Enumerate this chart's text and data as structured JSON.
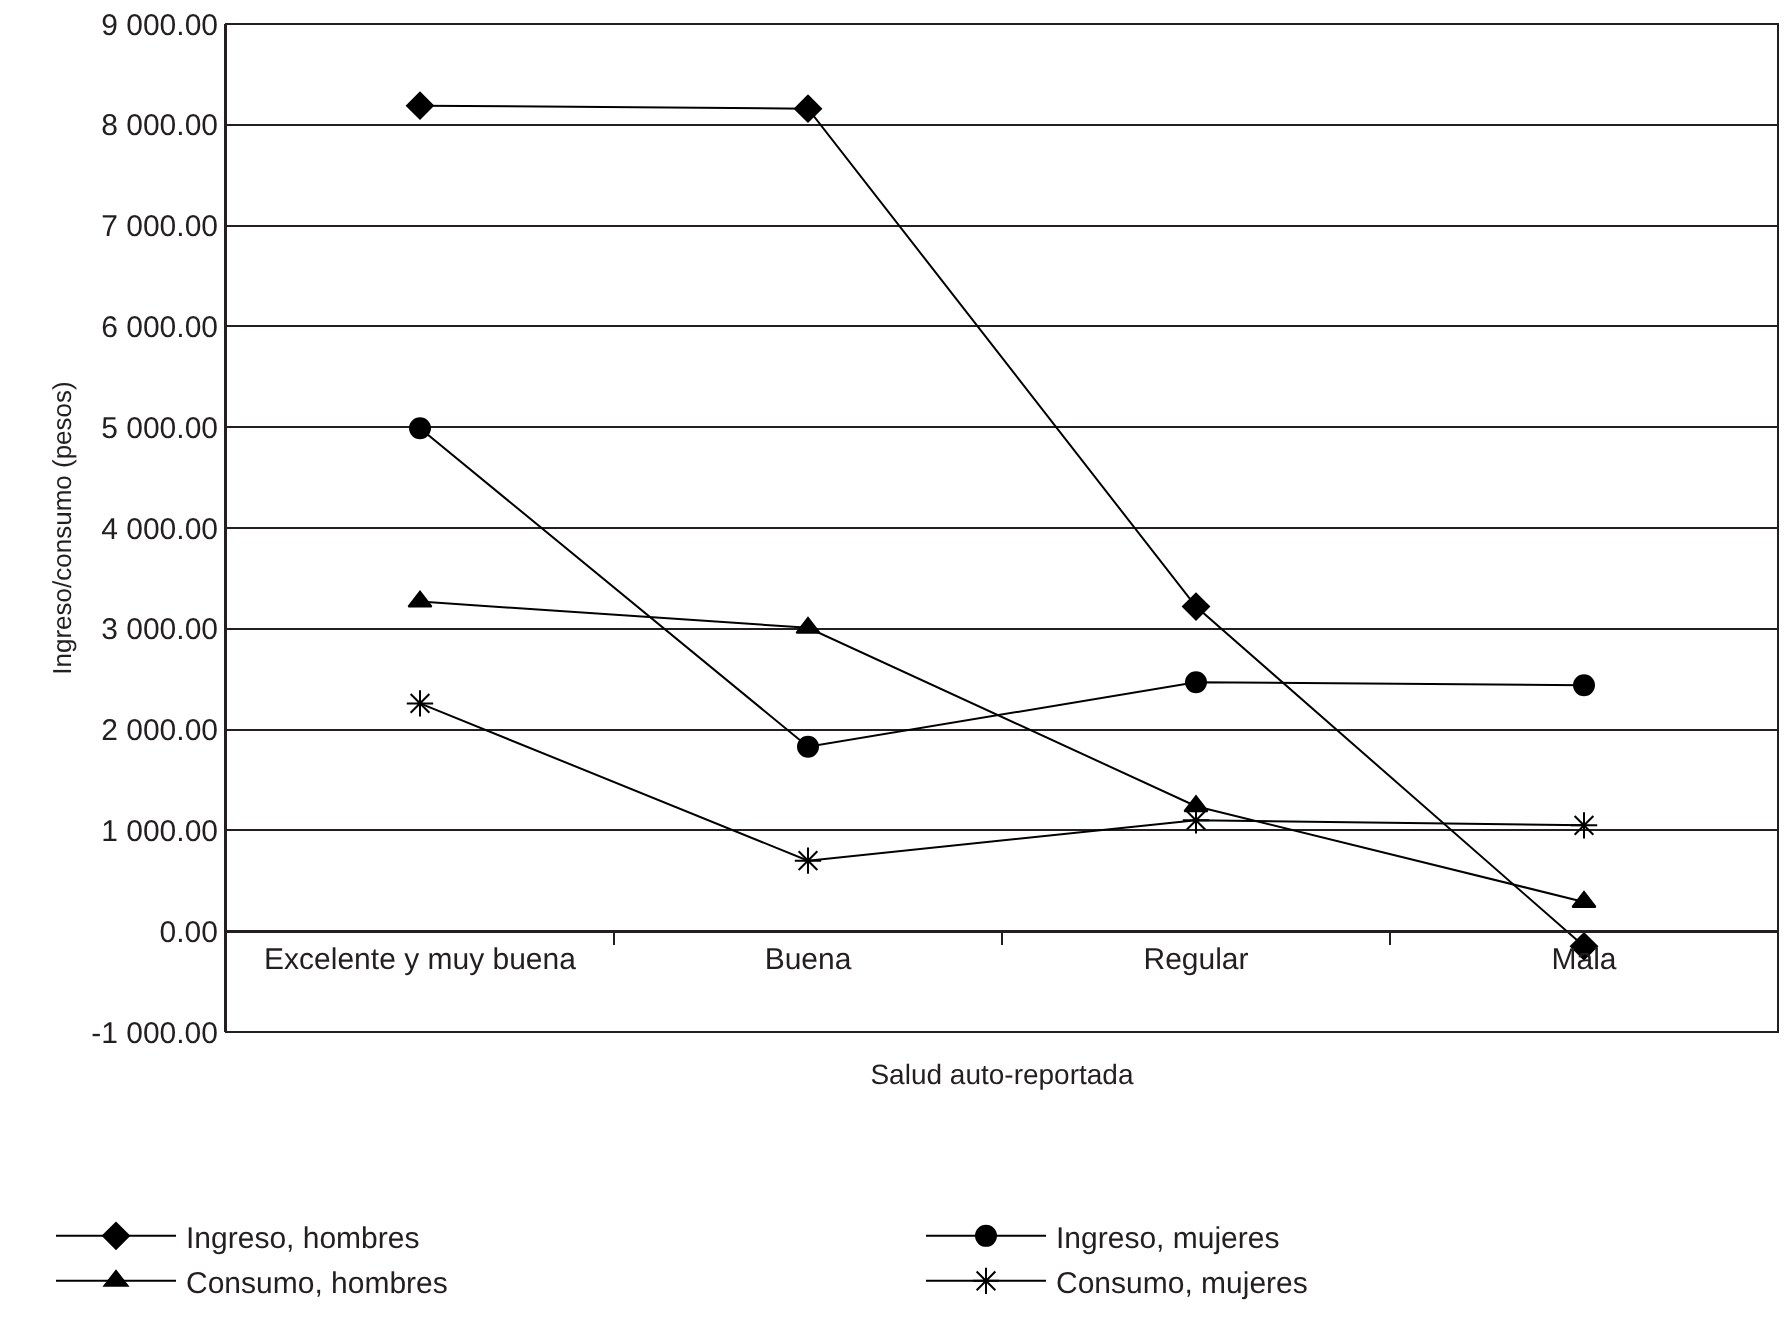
{
  "chart_data": {
    "type": "line",
    "xlabel": "Salud auto-reportada",
    "ylabel": "Ingreso/consumo (pesos)",
    "categories": [
      "Excelente y muy buena",
      "Buena",
      "Regular",
      "Mala"
    ],
    "series": [
      {
        "name": "Ingreso, hombres",
        "color": "#000000",
        "marker": "diamond",
        "values": [
          8190,
          8160,
          3220,
          -150
        ]
      },
      {
        "name": "Ingreso, mujeres",
        "color": "#000000",
        "marker": "circle",
        "values": [
          4990,
          1830,
          2470,
          2440
        ]
      },
      {
        "name": "Consumo, hombres",
        "color": "#000000",
        "marker": "triangle",
        "values": [
          3270,
          3010,
          1240,
          290
        ]
      },
      {
        "name": "Consumo, mujeres",
        "color": "#000000",
        "marker": "cross",
        "values": [
          2260,
          700,
          1100,
          1050
        ]
      }
    ],
    "ylim": [
      -1000,
      9000
    ],
    "yticks": [
      {
        "value": -1000,
        "label": "-1 000.00"
      },
      {
        "value": 0,
        "label": "0.00"
      },
      {
        "value": 1000,
        "label": "1 000.00"
      },
      {
        "value": 2000,
        "label": "2 000.00"
      },
      {
        "value": 3000,
        "label": "3 000.00"
      },
      {
        "value": 4000,
        "label": "4 000.00"
      },
      {
        "value": 5000,
        "label": "5 000.00"
      },
      {
        "value": 6000,
        "label": "6 000.00"
      },
      {
        "value": 7000,
        "label": "7 000.00"
      },
      {
        "value": 8000,
        "label": "8 000.00"
      },
      {
        "value": 9000,
        "label": "9 000.00"
      }
    ],
    "grid": "y",
    "legend": "bottom",
    "line_style": "solid"
  }
}
